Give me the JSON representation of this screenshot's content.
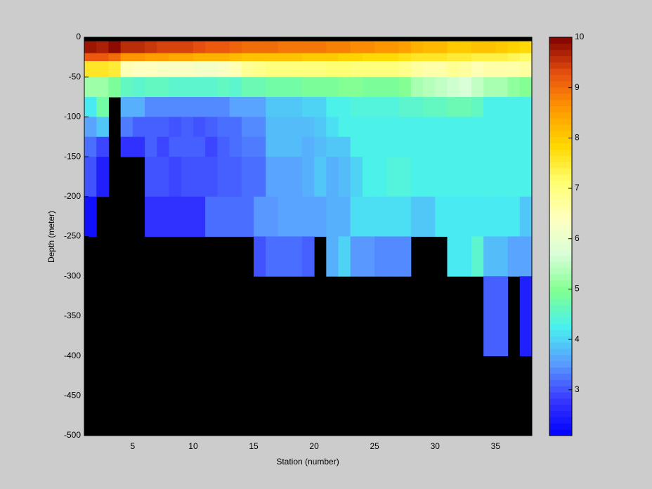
{
  "chart_data": {
    "type": "heatmap",
    "xlabel": "Station (number)",
    "ylabel": "Depth (meter)",
    "xlim": [
      1,
      38
    ],
    "ylim": [
      -500,
      0
    ],
    "xticks": [
      5,
      10,
      15,
      20,
      25,
      30,
      35
    ],
    "yticks": [
      0,
      -50,
      -100,
      -150,
      -200,
      -250,
      -300,
      -350,
      -400,
      -450,
      -500
    ],
    "clim": [
      2.09,
      10
    ],
    "cticks": [
      3,
      4,
      5,
      6,
      7,
      8,
      9,
      10
    ],
    "colormap": [
      "#0000ff",
      "#3838ff",
      "#5a9cff",
      "#48f0f0",
      "#80ff90",
      "#d8ffd8",
      "#ffffc0",
      "#ffff70",
      "#ffd800",
      "#ff9a00",
      "#e85010",
      "#800000"
    ],
    "background": "#000000",
    "x_edges": [
      1,
      2,
      3,
      4,
      5,
      6,
      7,
      8,
      9,
      10,
      11,
      12,
      13,
      14,
      15,
      16,
      17,
      18,
      19,
      20,
      21,
      22,
      23,
      24,
      25,
      26,
      27,
      28,
      29,
      30,
      31,
      32,
      33,
      34,
      35,
      36,
      37,
      38
    ],
    "y_edges": [
      -5,
      -20,
      -30,
      -50,
      -75,
      -100,
      -125,
      -150,
      -200,
      -250,
      -300,
      -400
    ],
    "values": [
      [
        9.8,
        9.7,
        9.9,
        9.6,
        9.6,
        9.5,
        9.4,
        9.4,
        9.4,
        9.3,
        9.2,
        9.2,
        9.1,
        9.0,
        9.0,
        9.0,
        8.9,
        8.9,
        8.9,
        8.9,
        8.8,
        8.8,
        8.7,
        8.7,
        8.6,
        8.6,
        8.5,
        8.3,
        8.2,
        8.2,
        8.0,
        8.0,
        8.1,
        8.1,
        8.0,
        7.9,
        7.8
      ],
      [
        9.2,
        9.2,
        9.0,
        8.6,
        8.6,
        8.5,
        8.5,
        8.4,
        8.4,
        8.3,
        8.3,
        8.3,
        8.2,
        8.1,
        8.1,
        8.1,
        8.1,
        8.1,
        8.0,
        8.0,
        8.0,
        7.9,
        7.9,
        7.8,
        7.8,
        7.8,
        7.7,
        7.6,
        7.6,
        7.6,
        7.5,
        7.5,
        7.4,
        7.4,
        7.4,
        7.3,
        7.2
      ],
      [
        7.6,
        7.6,
        7.5,
        6.5,
        6.4,
        6.4,
        6.3,
        6.3,
        6.3,
        6.2,
        6.2,
        6.3,
        6.5,
        6.8,
        6.9,
        7.0,
        7.0,
        7.0,
        7.0,
        7.0,
        7.1,
        7.1,
        7.0,
        7.0,
        7.0,
        7.0,
        6.9,
        6.7,
        6.6,
        6.6,
        6.8,
        6.7,
        6.5,
        6.6,
        6.6,
        6.6,
        6.7
      ],
      [
        5.2,
        5.2,
        4.9,
        4.6,
        4.5,
        4.6,
        4.6,
        4.5,
        4.5,
        4.5,
        4.5,
        4.6,
        4.5,
        4.7,
        4.7,
        4.8,
        4.8,
        4.8,
        4.9,
        4.9,
        4.9,
        5.0,
        5.0,
        4.9,
        4.9,
        4.9,
        5.0,
        5.3,
        5.4,
        5.5,
        5.6,
        5.7,
        5.5,
        5.3,
        5.3,
        5.1,
        5.0
      ],
      [
        4.2,
        4.8,
        null,
        3.7,
        3.7,
        3.4,
        3.4,
        3.4,
        3.4,
        3.4,
        3.4,
        3.4,
        3.6,
        3.6,
        3.6,
        3.9,
        3.9,
        3.9,
        4.0,
        4.0,
        4.3,
        4.3,
        4.4,
        4.4,
        4.4,
        4.4,
        4.5,
        4.5,
        4.6,
        4.6,
        4.7,
        4.7,
        4.6,
        4.3,
        4.3,
        4.3,
        4.3
      ],
      [
        3.6,
        3.9,
        null,
        3.3,
        3.1,
        3.1,
        3.1,
        3.0,
        3.1,
        3.0,
        3.1,
        3.2,
        3.2,
        3.4,
        3.4,
        3.8,
        3.8,
        3.8,
        3.8,
        3.9,
        4.1,
        4.3,
        4.3,
        4.3,
        4.3,
        4.3,
        4.3,
        4.3,
        4.3,
        4.3,
        4.3,
        4.3,
        4.3,
        4.3,
        4.3,
        4.3,
        4.3
      ],
      [
        3.2,
        2.9,
        null,
        2.7,
        2.7,
        3.1,
        2.9,
        3.1,
        3.1,
        3.1,
        2.9,
        3.1,
        3.2,
        3.3,
        3.3,
        3.8,
        3.8,
        3.8,
        3.7,
        3.8,
        3.9,
        3.9,
        4.3,
        4.3,
        4.3,
        4.3,
        4.3,
        4.3,
        4.3,
        4.3,
        4.3,
        4.3,
        4.3,
        4.3,
        4.3,
        4.3,
        4.3
      ],
      [
        3.0,
        2.5,
        null,
        null,
        null,
        3.0,
        3.0,
        2.9,
        3.0,
        3.0,
        3.0,
        3.1,
        3.1,
        3.2,
        3.2,
        3.6,
        3.6,
        3.6,
        3.7,
        3.9,
        3.7,
        3.8,
        4.0,
        4.3,
        4.3,
        4.4,
        4.4,
        4.3,
        4.3,
        4.3,
        4.3,
        4.3,
        4.3,
        4.3,
        4.3,
        4.3,
        4.3
      ],
      [
        2.3,
        null,
        null,
        null,
        null,
        2.7,
        2.7,
        2.7,
        2.7,
        2.7,
        3.2,
        3.2,
        3.2,
        3.2,
        3.5,
        3.5,
        3.6,
        3.6,
        3.6,
        3.6,
        3.7,
        3.7,
        4.1,
        4.1,
        4.1,
        4.1,
        4.1,
        3.9,
        3.9,
        4.2,
        4.2,
        4.2,
        4.2,
        4.2,
        4.2,
        4.2,
        3.9
      ],
      [
        null,
        null,
        null,
        null,
        null,
        null,
        null,
        null,
        null,
        null,
        null,
        null,
        null,
        null,
        3.0,
        3.2,
        3.2,
        3.2,
        3.1,
        null,
        3.7,
        4.0,
        3.5,
        3.5,
        3.4,
        3.4,
        3.4,
        null,
        null,
        null,
        4.2,
        4.2,
        4.5,
        3.8,
        3.8,
        3.6,
        3.6
      ],
      [
        null,
        null,
        null,
        null,
        null,
        null,
        null,
        null,
        null,
        null,
        null,
        null,
        null,
        null,
        null,
        null,
        null,
        null,
        null,
        null,
        null,
        null,
        null,
        null,
        null,
        null,
        null,
        null,
        null,
        null,
        null,
        null,
        null,
        3.1,
        3.1,
        null,
        2.5
      ]
    ]
  }
}
